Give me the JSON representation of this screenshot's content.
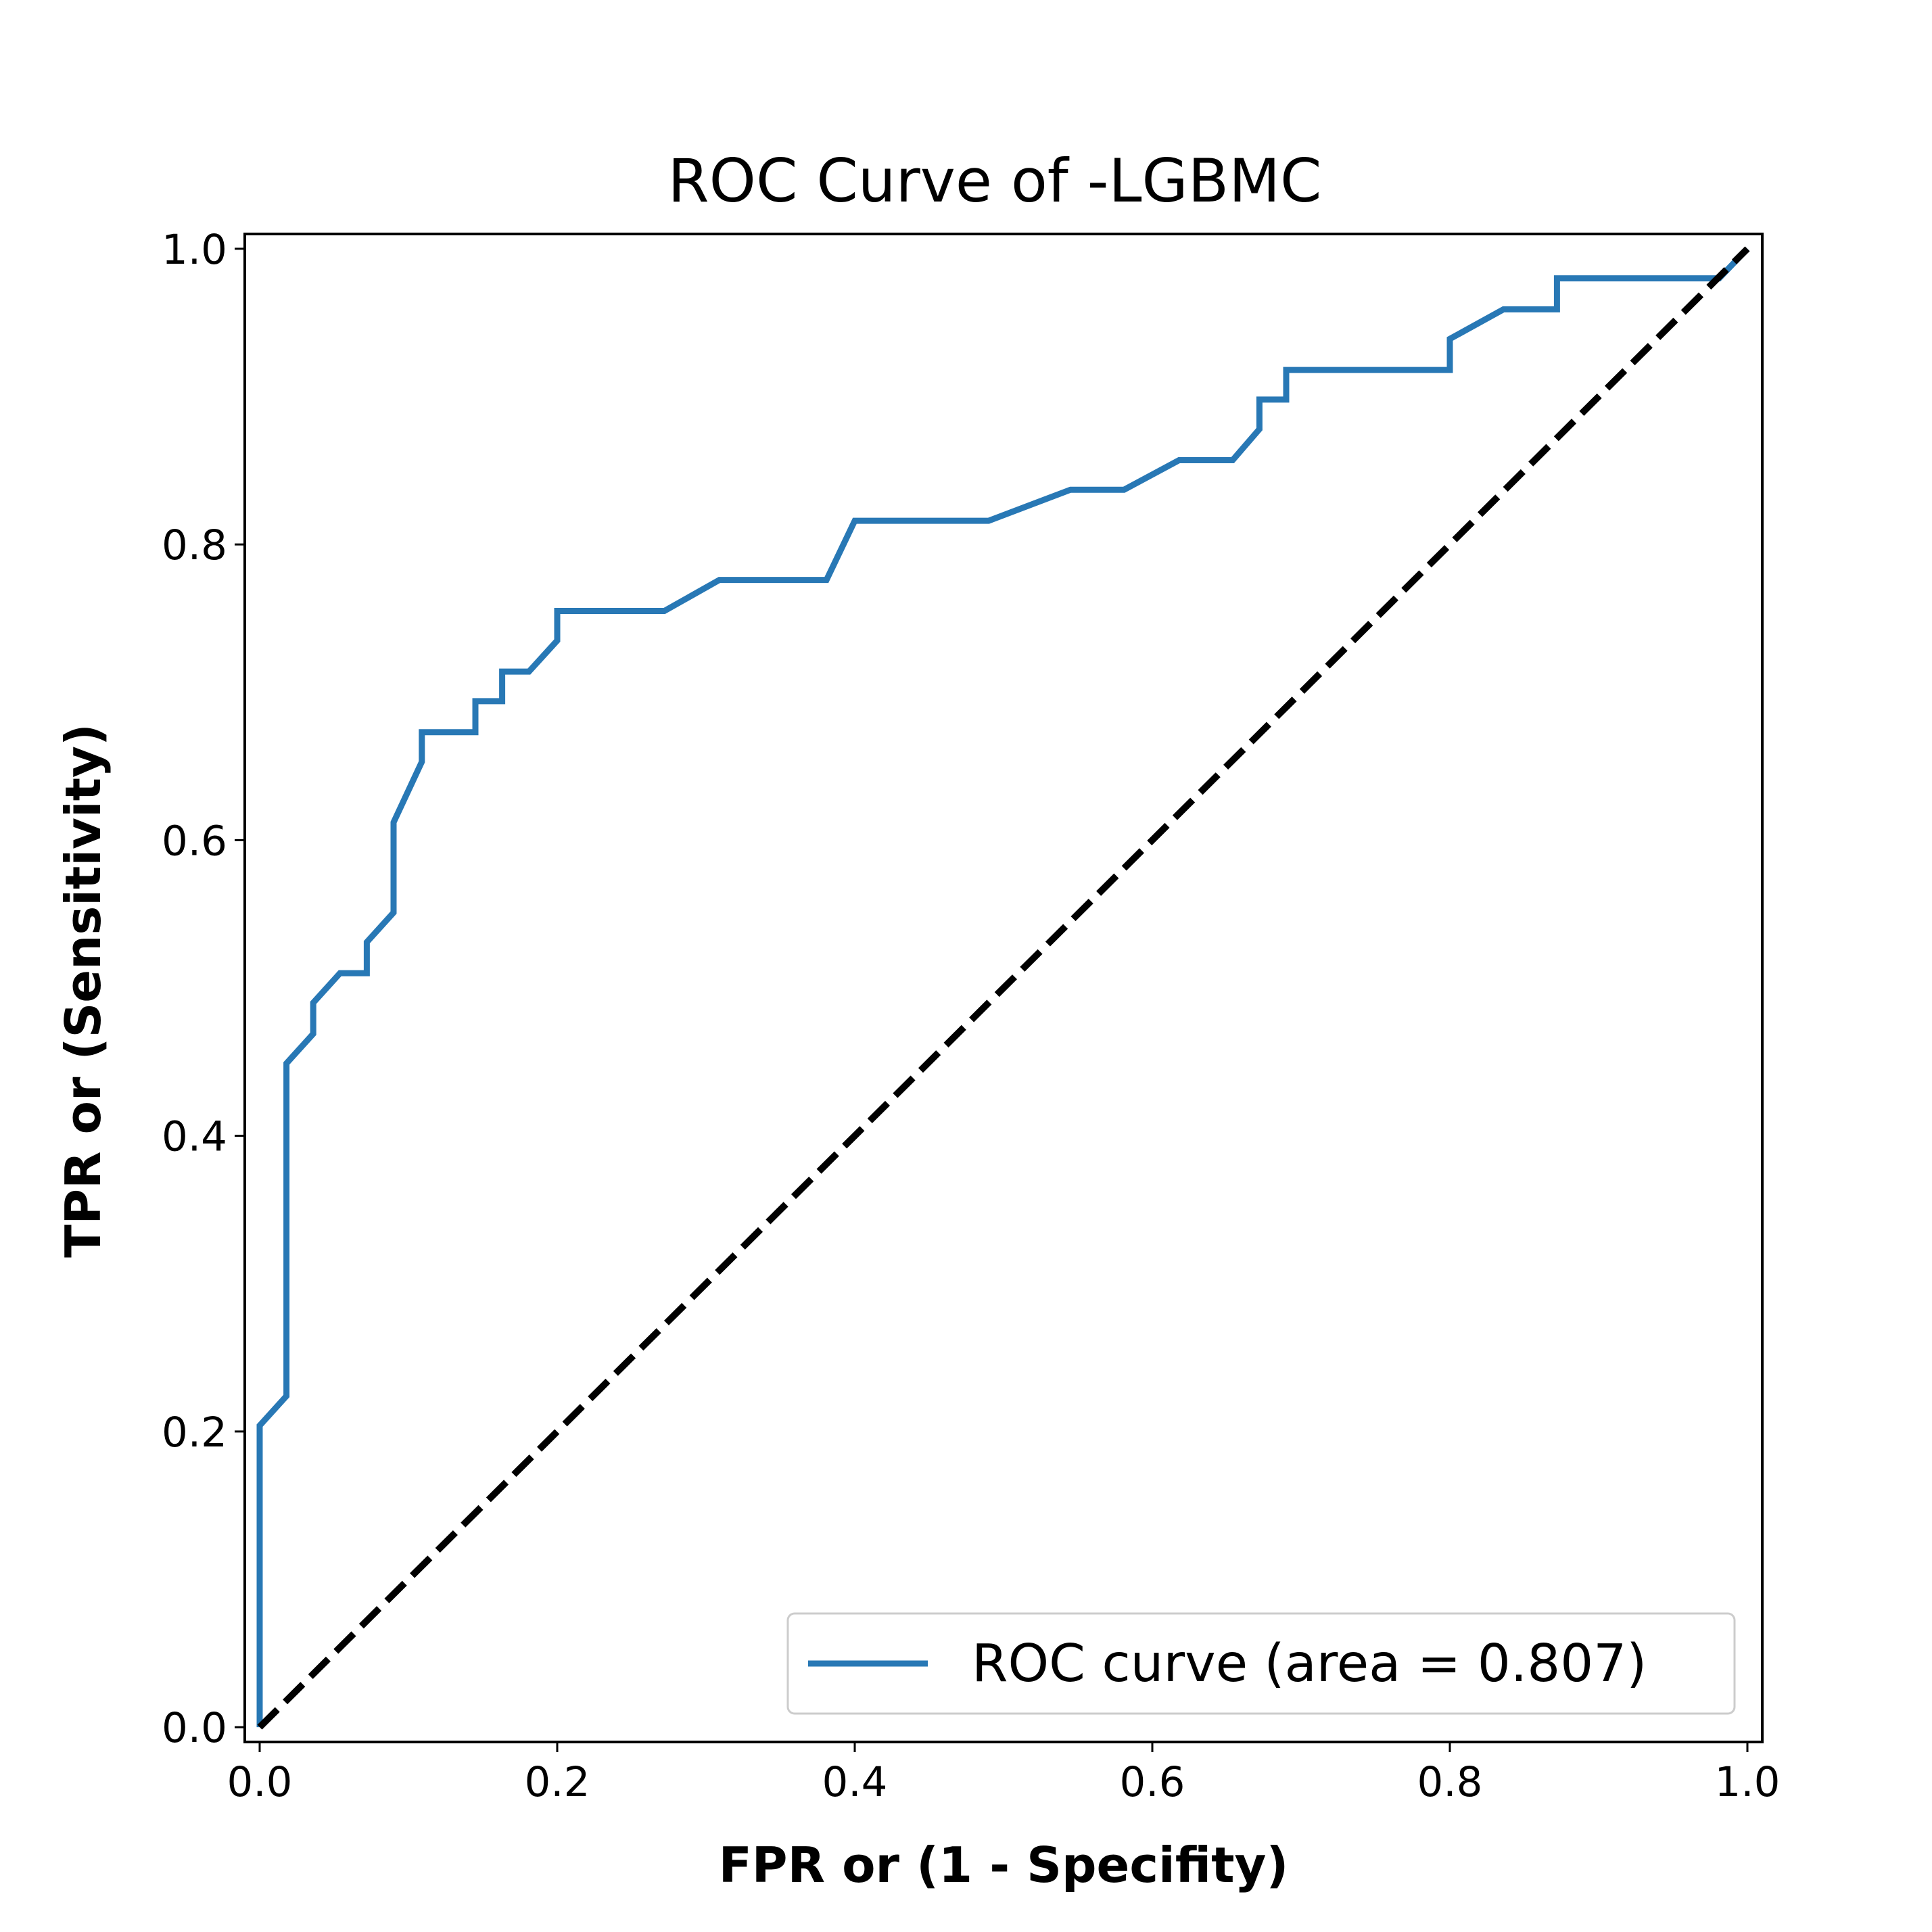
{
  "chart_data": {
    "type": "line",
    "title": "ROC Curve of -LGBMC",
    "xlabel": "FPR or (1 - Specifity)",
    "ylabel": "TPR or (Sensitivity)",
    "xlim": [
      -0.01,
      1.01
    ],
    "ylim": [
      -0.01,
      1.01
    ],
    "xticks": [
      "0.0",
      "0.2",
      "0.4",
      "0.6",
      "0.8",
      "1.0"
    ],
    "yticks": [
      "0.0",
      "0.2",
      "0.4",
      "0.6",
      "0.8",
      "1.0"
    ],
    "grid": false,
    "legend_position": "lower-right",
    "colors": {
      "roc": "#2878b5",
      "diagonal": "#000000"
    },
    "series": [
      {
        "name": "ROC curve (area = 0.807)",
        "style": "solid",
        "x": [
          0.0,
          0.0,
          0.018,
          0.018,
          0.036,
          0.036,
          0.054,
          0.072,
          0.072,
          0.09,
          0.09,
          0.109,
          0.109,
          0.145,
          0.145,
          0.163,
          0.163,
          0.181,
          0.2,
          0.2,
          0.272,
          0.309,
          0.381,
          0.4,
          0.49,
          0.545,
          0.581,
          0.618,
          0.654,
          0.672,
          0.672,
          0.69,
          0.69,
          0.8,
          0.8,
          0.836,
          0.872,
          0.872,
          0.981,
          1.0
        ],
        "y": [
          0.0,
          0.204,
          0.224,
          0.449,
          0.469,
          0.49,
          0.51,
          0.51,
          0.531,
          0.551,
          0.612,
          0.653,
          0.673,
          0.673,
          0.694,
          0.694,
          0.714,
          0.714,
          0.735,
          0.755,
          0.755,
          0.776,
          0.776,
          0.816,
          0.816,
          0.837,
          0.837,
          0.857,
          0.857,
          0.878,
          0.898,
          0.898,
          0.918,
          0.918,
          0.939,
          0.959,
          0.959,
          0.98,
          0.98,
          1.0
        ]
      },
      {
        "name": "",
        "style": "dashed",
        "x": [
          0.0,
          1.0
        ],
        "y": [
          0.0,
          1.0
        ]
      }
    ]
  }
}
